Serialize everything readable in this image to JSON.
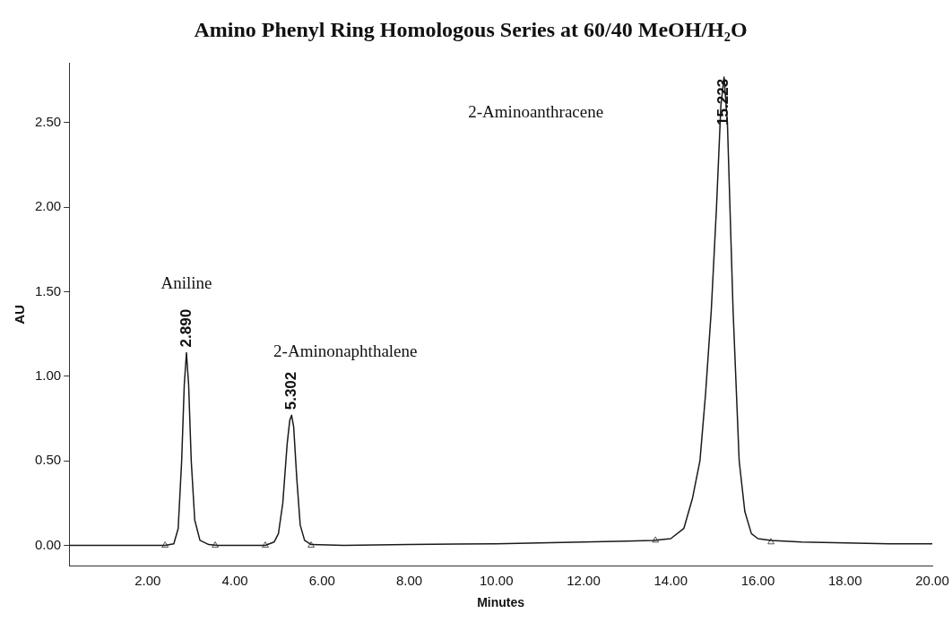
{
  "chart_data": {
    "type": "line",
    "title": "Amino Phenyl Ring Homologous Series at 60/40 MeOH/H₂O",
    "xlabel": "Minutes",
    "ylabel": "AU",
    "xlim": [
      0.2,
      20
    ],
    "xticks": [
      {
        "value": 2,
        "label": "2.00"
      },
      {
        "value": 4,
        "label": "4.00"
      },
      {
        "value": 6,
        "label": "6.00"
      },
      {
        "value": 8,
        "label": "8.00"
      },
      {
        "value": 10,
        "label": "10.00"
      },
      {
        "value": 12,
        "label": "12.00"
      },
      {
        "value": 14,
        "label": "14.00"
      },
      {
        "value": 16,
        "label": "16.00"
      },
      {
        "value": 18,
        "label": "18.00"
      },
      {
        "value": 20,
        "label": "20.00"
      }
    ],
    "ylim": [
      -0.12,
      2.85
    ],
    "yticks": [
      {
        "value": 0,
        "label": "0.00"
      },
      {
        "value": 0.5,
        "label": "0.50"
      },
      {
        "value": 1,
        "label": "1.00"
      },
      {
        "value": 1.5,
        "label": "1.50"
      },
      {
        "value": 2,
        "label": "2.00"
      },
      {
        "value": 2.5,
        "label": "2.50"
      }
    ],
    "grid": false,
    "legend": false,
    "series": [
      {
        "color": "#1a1a1a",
        "marker": "none",
        "line_style": "solid",
        "x": [
          0.2,
          1,
          2,
          2.4,
          2.6,
          2.7,
          2.78,
          2.84,
          2.89,
          2.94,
          3,
          3.08,
          3.2,
          3.4,
          3.6,
          4.2,
          4.7,
          4.9,
          5,
          5.1,
          5.2,
          5.26,
          5.302,
          5.35,
          5.42,
          5.5,
          5.6,
          5.75,
          6.5,
          8,
          10,
          12,
          13,
          13.6,
          14,
          14.3,
          14.5,
          14.67,
          14.8,
          14.93,
          15.05,
          15.15,
          15.223,
          15.3,
          15.43,
          15.57,
          15.7,
          15.85,
          16,
          16.3,
          17,
          18,
          19,
          20
        ],
        "values": [
          0,
          0,
          0,
          0,
          0.01,
          0.1,
          0.5,
          0.95,
          1.14,
          0.95,
          0.5,
          0.15,
          0.03,
          0.005,
          0,
          0,
          0,
          0.02,
          0.07,
          0.25,
          0.6,
          0.74,
          0.77,
          0.7,
          0.4,
          0.12,
          0.03,
          0.005,
          0,
          0.005,
          0.01,
          0.02,
          0.025,
          0.03,
          0.04,
          0.1,
          0.28,
          0.5,
          0.9,
          1.39,
          2,
          2.6,
          2.77,
          2.5,
          1.39,
          0.5,
          0.2,
          0.07,
          0.04,
          0.03,
          0.02,
          0.015,
          0.01,
          0.01
        ]
      },
      {
        "type": "scatter",
        "color": "#555555",
        "marker": "triangle",
        "x": [
          2.4,
          3.55,
          4.7,
          5.75,
          13.65,
          16.3
        ],
        "values": [
          0,
          0,
          0,
          0,
          0.03,
          0.02
        ]
      }
    ],
    "annotations": [
      {
        "text": "2.890",
        "x": 2.89,
        "y": 1.14
      },
      {
        "text": "5.302",
        "x": 5.302,
        "y": 0.77
      },
      {
        "text": "15.223",
        "x": 15.223,
        "y": 2.77
      },
      "Aniline",
      "2-Aminonaphthalene",
      "2-Aminoanthracene"
    ]
  }
}
